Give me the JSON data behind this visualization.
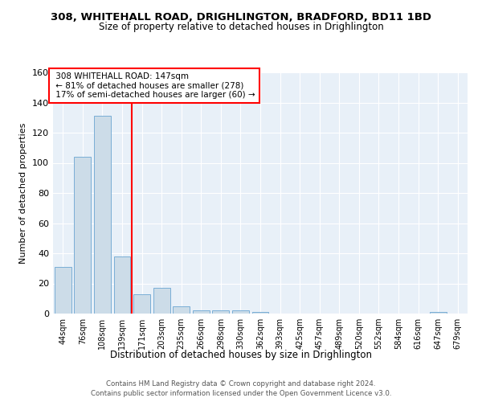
{
  "title_line1": "308, WHITEHALL ROAD, DRIGHLINGTON, BRADFORD, BD11 1BD",
  "title_line2": "Size of property relative to detached houses in Drighlington",
  "xlabel": "Distribution of detached houses by size in Drighlington",
  "ylabel": "Number of detached properties",
  "bar_color": "#ccdce8",
  "bar_edge_color": "#7aaed6",
  "bin_labels": [
    "44sqm",
    "76sqm",
    "108sqm",
    "139sqm",
    "171sqm",
    "203sqm",
    "235sqm",
    "266sqm",
    "298sqm",
    "330sqm",
    "362sqm",
    "393sqm",
    "425sqm",
    "457sqm",
    "489sqm",
    "520sqm",
    "552sqm",
    "584sqm",
    "616sqm",
    "647sqm",
    "679sqm"
  ],
  "bar_values": [
    31,
    104,
    131,
    38,
    13,
    17,
    5,
    2,
    2,
    2,
    1,
    0,
    0,
    0,
    0,
    0,
    0,
    0,
    0,
    1,
    0
  ],
  "property_label": "308 WHITEHALL ROAD: 147sqm",
  "pct_smaller": 81,
  "n_smaller": 278,
  "pct_larger_semi": 17,
  "n_larger_semi": 60,
  "red_line_bin_index": 3,
  "ylim": [
    0,
    160
  ],
  "yticks": [
    0,
    20,
    40,
    60,
    80,
    100,
    120,
    140,
    160
  ],
  "background_color": "#e8f0f8",
  "footer_line1": "Contains HM Land Registry data © Crown copyright and database right 2024.",
  "footer_line2": "Contains public sector information licensed under the Open Government Licence v3.0."
}
